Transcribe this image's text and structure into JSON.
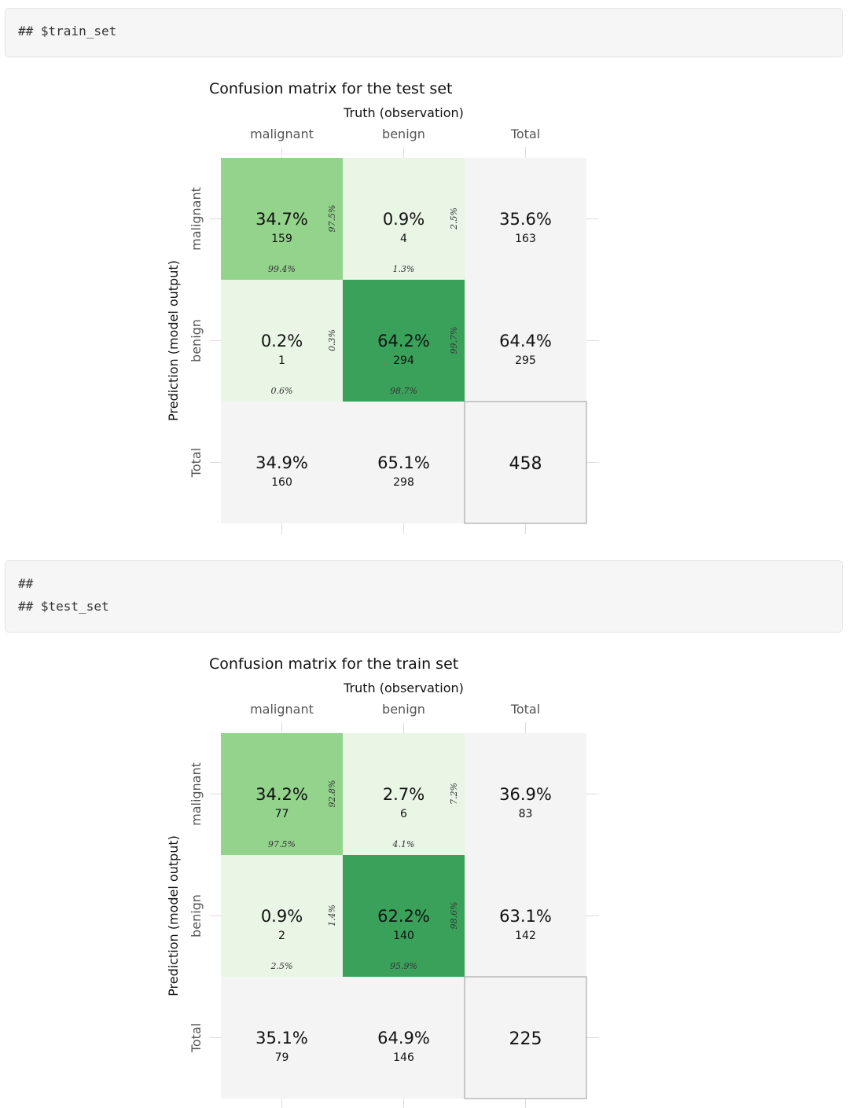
{
  "code_blocks": [
    {
      "lines": [
        "## $train_set"
      ]
    },
    {
      "lines": [
        "##",
        "## $test_set"
      ]
    }
  ],
  "colors": {
    "low": "#e9f6e5",
    "mid": "#93d38c",
    "high": "#3aa15a",
    "total_bg": "#f4f4f4",
    "total_border": "#9a9a9a",
    "tick": "#dddddd"
  },
  "chart_data": [
    {
      "type": "heatmap",
      "title": "Confusion matrix for the test set",
      "xlabel": "Truth (observation)",
      "ylabel": "Prediction (model output)",
      "columns": [
        "malignant",
        "benign",
        "Total"
      ],
      "rows": [
        "malignant",
        "benign",
        "Total"
      ],
      "cells": [
        [
          {
            "pct": "34.7%",
            "count": "159",
            "col_pct": "99.4%",
            "row_pct": "97.5%",
            "level": "mid"
          },
          {
            "pct": "0.9%",
            "count": "4",
            "col_pct": "1.3%",
            "row_pct": "2.5%",
            "level": "low"
          }
        ],
        [
          {
            "pct": "0.2%",
            "count": "1",
            "col_pct": "0.6%",
            "row_pct": "0.3%",
            "level": "low"
          },
          {
            "pct": "64.2%",
            "count": "294",
            "col_pct": "98.7%",
            "row_pct": "99.7%",
            "level": "high"
          }
        ]
      ],
      "row_totals": [
        {
          "pct": "35.6%",
          "count": "163"
        },
        {
          "pct": "64.4%",
          "count": "295"
        }
      ],
      "col_totals": [
        {
          "pct": "34.9%",
          "count": "160"
        },
        {
          "pct": "65.1%",
          "count": "298"
        }
      ],
      "grand_total": "458"
    },
    {
      "type": "heatmap",
      "title": "Confusion matrix for the train set",
      "xlabel": "Truth (observation)",
      "ylabel": "Prediction (model output)",
      "columns": [
        "malignant",
        "benign",
        "Total"
      ],
      "rows": [
        "malignant",
        "benign",
        "Total"
      ],
      "cells": [
        [
          {
            "pct": "34.2%",
            "count": "77",
            "col_pct": "97.5%",
            "row_pct": "92.8%",
            "level": "mid"
          },
          {
            "pct": "2.7%",
            "count": "6",
            "col_pct": "4.1%",
            "row_pct": "7.2%",
            "level": "low"
          }
        ],
        [
          {
            "pct": "0.9%",
            "count": "2",
            "col_pct": "2.5%",
            "row_pct": "1.4%",
            "level": "low"
          },
          {
            "pct": "62.2%",
            "count": "140",
            "col_pct": "95.9%",
            "row_pct": "98.6%",
            "level": "high"
          }
        ]
      ],
      "row_totals": [
        {
          "pct": "36.9%",
          "count": "83"
        },
        {
          "pct": "63.1%",
          "count": "142"
        }
      ],
      "col_totals": [
        {
          "pct": "35.1%",
          "count": "79"
        },
        {
          "pct": "64.9%",
          "count": "146"
        }
      ],
      "grand_total": "225"
    }
  ]
}
